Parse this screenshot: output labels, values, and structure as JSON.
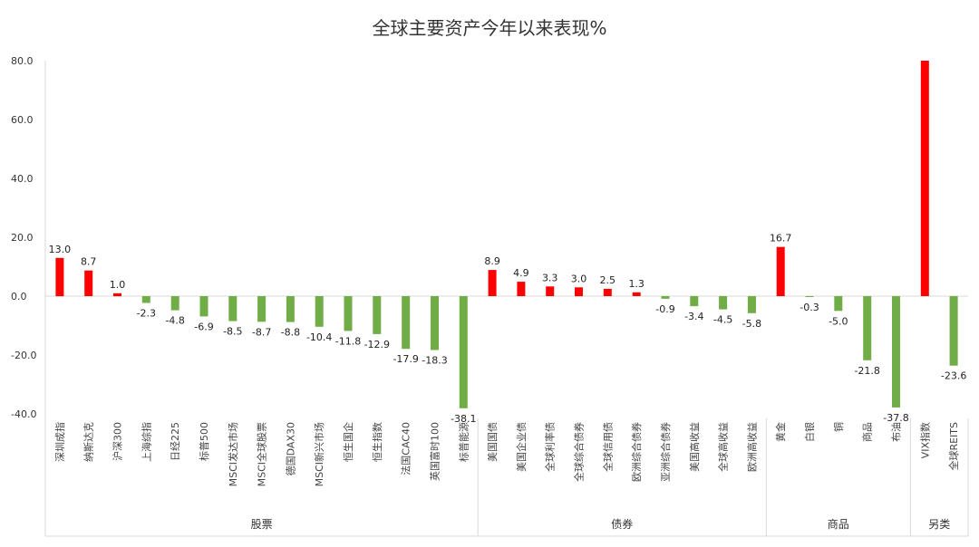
{
  "chart_data": {
    "type": "bar",
    "title": "全球主要资产今年以来表现%",
    "ylim": [
      -40,
      80
    ],
    "yticks": [
      "80.0",
      "60.0",
      "40.0",
      "20.0",
      "0.0",
      "-20.0",
      "-40.0"
    ],
    "grid": false,
    "legend": "none",
    "colors": {
      "positive": "#ff0000",
      "negative": "#70ad47",
      "axis": "#d9d9d9"
    },
    "categories": [
      "深圳成指",
      "纳斯达克",
      "沪深300",
      "上海综指",
      "日经225",
      "标普500",
      "MSCI发达市场",
      "MSCI全球股票",
      "德国DAX30",
      "MSCI新兴市场",
      "恒生国企",
      "恒生指数",
      "法国CAC40",
      "英国富时100",
      "标普能源",
      "美国国债",
      "美国企业债",
      "全球利率债",
      "全球综合债券",
      "全球信用债",
      "欧洲综合债券",
      "亚洲综合债券",
      "美国高收益",
      "全球高收益",
      "欧洲高收益",
      "黄金",
      "白银",
      "铜",
      "商品",
      "布油",
      "VIX指数",
      "全球REITS"
    ],
    "values": [
      13.0,
      8.7,
      1.0,
      -2.3,
      -4.8,
      -6.9,
      -8.5,
      -8.7,
      -8.8,
      -10.4,
      -11.8,
      -12.9,
      -17.9,
      -18.3,
      -38.1,
      8.9,
      4.9,
      3.3,
      3.0,
      2.5,
      1.3,
      -0.9,
      -3.4,
      -4.5,
      -5.8,
      16.7,
      -0.3,
      -5.0,
      -21.8,
      -37.8,
      80.0,
      -23.6
    ],
    "value_labels": [
      "13.0",
      "8.7",
      "1.0",
      "-2.3",
      "-4.8",
      "-6.9",
      "-8.5",
      "-8.7",
      "-8.8",
      "-10.4",
      "-11.8",
      "-12.9",
      "-17.9",
      "-18.3",
      "-38.1",
      "8.9",
      "4.9",
      "3.3",
      "3.0",
      "2.5",
      "1.3",
      "-0.9",
      "-3.4",
      "-4.5",
      "-5.8",
      "16.7",
      "-0.3",
      "-5.0",
      "-21.8",
      "-37.8",
      "",
      "-23.6"
    ],
    "groups": [
      {
        "name": "股票",
        "count": 15
      },
      {
        "name": "债券",
        "count": 10
      },
      {
        "name": "商品",
        "count": 5
      },
      {
        "name": "另类",
        "count": 2
      }
    ]
  }
}
